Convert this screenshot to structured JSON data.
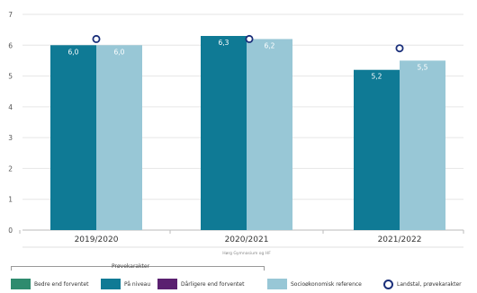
{
  "chart_data": {
    "type": "bar",
    "categories": [
      "2019/2020",
      "2020/2021",
      "2021/2022"
    ],
    "series": [
      {
        "name": "På niveau",
        "values": [
          6.0,
          6.3,
          5.2
        ],
        "labels": [
          "6,0",
          "6,3",
          "5,2"
        ],
        "color": "#0f7a95"
      },
      {
        "name": "Socioøkonomisk reference",
        "values": [
          6.0,
          6.2,
          5.5
        ],
        "labels": [
          "6,0",
          "6,2",
          "5,5"
        ],
        "color": "#98c7d6"
      }
    ],
    "landstal": [
      6.2,
      6.2,
      5.9
    ],
    "yticks": [
      "0",
      "1",
      "2",
      "3",
      "4",
      "5",
      "6",
      "7"
    ],
    "ylim": [
      0,
      7
    ],
    "sublabel": "Hørg Gymnasium og HF",
    "grid": true
  },
  "legend": {
    "title": "Prøvekarakter",
    "items": [
      {
        "label": "Bedre end forventet",
        "color": "#2e8b6e"
      },
      {
        "label": "På niveau",
        "color": "#0f7a95"
      },
      {
        "label": "Dårligere end forventet",
        "color": "#5a2070"
      },
      {
        "label": "Socioøkonomisk reference",
        "color": "#98c7d6"
      },
      {
        "label": "Landstal, prøvekarakter",
        "color": "#1a2f7a"
      }
    ]
  }
}
